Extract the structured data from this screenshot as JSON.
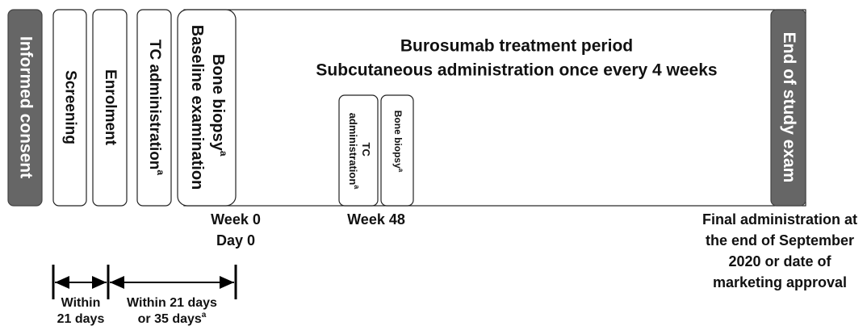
{
  "informed_consent": "Informed consent",
  "screening": "Screening",
  "enrolment": "Enrolment",
  "tc_admin": {
    "text": "TC administration",
    "sup": "a"
  },
  "baseline": {
    "line1": "Bone biopsy",
    "sup": "a",
    "line2": "Baseline examination"
  },
  "treatment": {
    "title": "Burosumab treatment period",
    "subtitle": "Subcutaneous administration once every 4 weeks"
  },
  "week48_tc": {
    "line1": "TC",
    "line2": "administration",
    "sup": "a"
  },
  "week48_biopsy": {
    "text": "Bone biopsy",
    "sup": "a"
  },
  "end_of_study": "End of study exam",
  "week0": [
    "Week 0",
    "Day 0"
  ],
  "week48": "Week 48",
  "final": [
    "Final administration at",
    "the end of September",
    "2020 or date of",
    "marketing approval"
  ],
  "interval1": [
    "Within",
    "21 days"
  ],
  "interval2": {
    "line1": "Within 21 days",
    "line2": "or 35 days",
    "sup": "a"
  }
}
